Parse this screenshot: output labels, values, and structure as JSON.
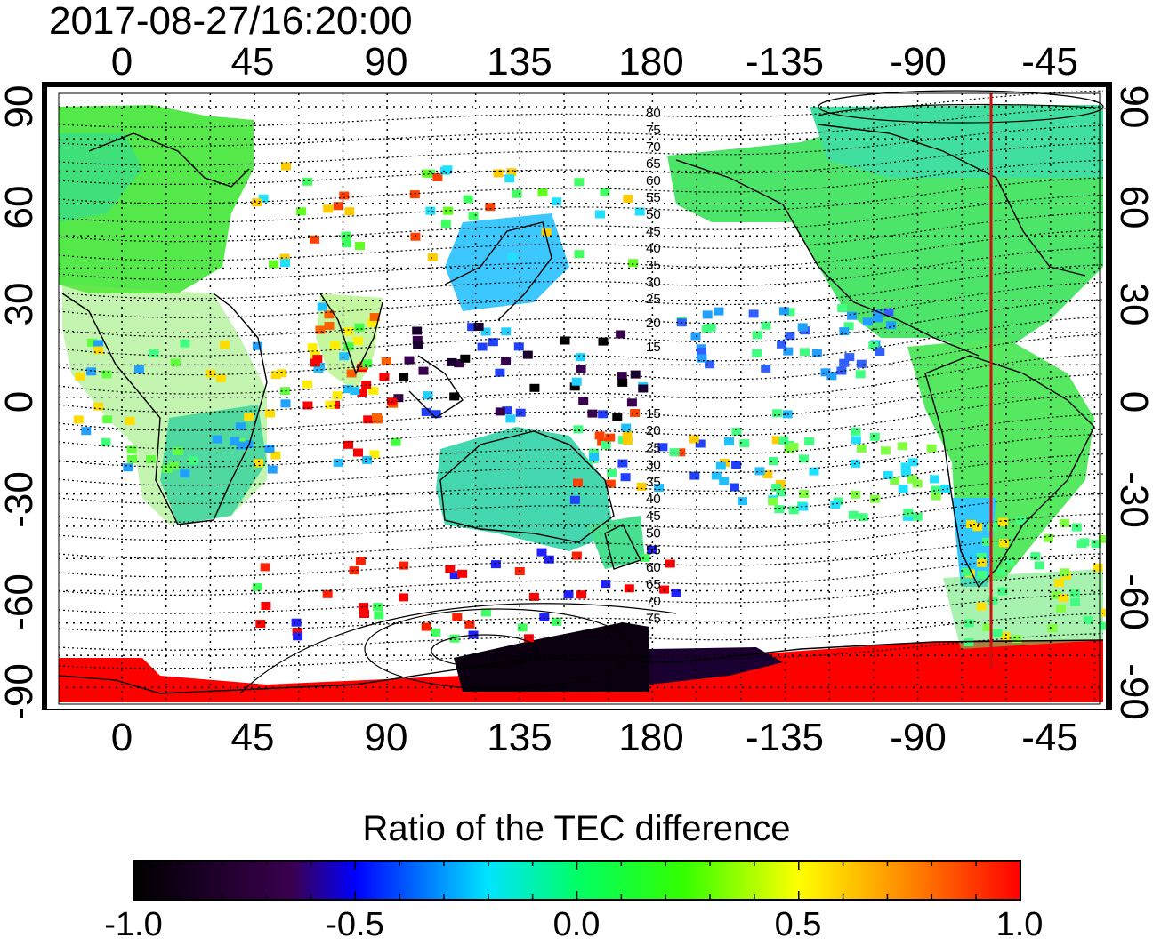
{
  "header": {
    "timestamp": "2017-08-27/16:20:00"
  },
  "map": {
    "top_longitude_labels": [
      "0",
      "45",
      "90",
      "135",
      "180",
      "-135",
      "-90",
      "-45"
    ],
    "bottom_longitude_labels": [
      "0",
      "45",
      "90",
      "135",
      "180",
      "-135",
      "-90",
      "-45"
    ],
    "left_latitude_labels": [
      "90",
      "60",
      "30",
      "0",
      "-30",
      "-60",
      "-90"
    ],
    "right_latitude_labels": [
      "90",
      "60",
      "30",
      "0",
      "-30",
      "-60",
      "-90"
    ],
    "contour_labels_north": [
      "80",
      "75",
      "70",
      "65",
      "60",
      "55",
      "50",
      "45",
      "40",
      "35",
      "30",
      "25",
      "20",
      "15"
    ],
    "contour_labels_south": [
      "15",
      "20",
      "25",
      "30",
      "35",
      "40",
      "45",
      "50",
      "55",
      "60",
      "65",
      "70",
      "75"
    ],
    "reference_line_color": "#d01010"
  },
  "colorbar": {
    "title": "Ratio of the TEC difference",
    "tick_labels": [
      "-1.0",
      "-0.5",
      "0.0",
      "0.5",
      "1.0"
    ],
    "colors": [
      "#000000",
      "#3a0050",
      "#0000ff",
      "#00e5ff",
      "#00ff00",
      "#ffff00",
      "#ff0000"
    ]
  }
}
